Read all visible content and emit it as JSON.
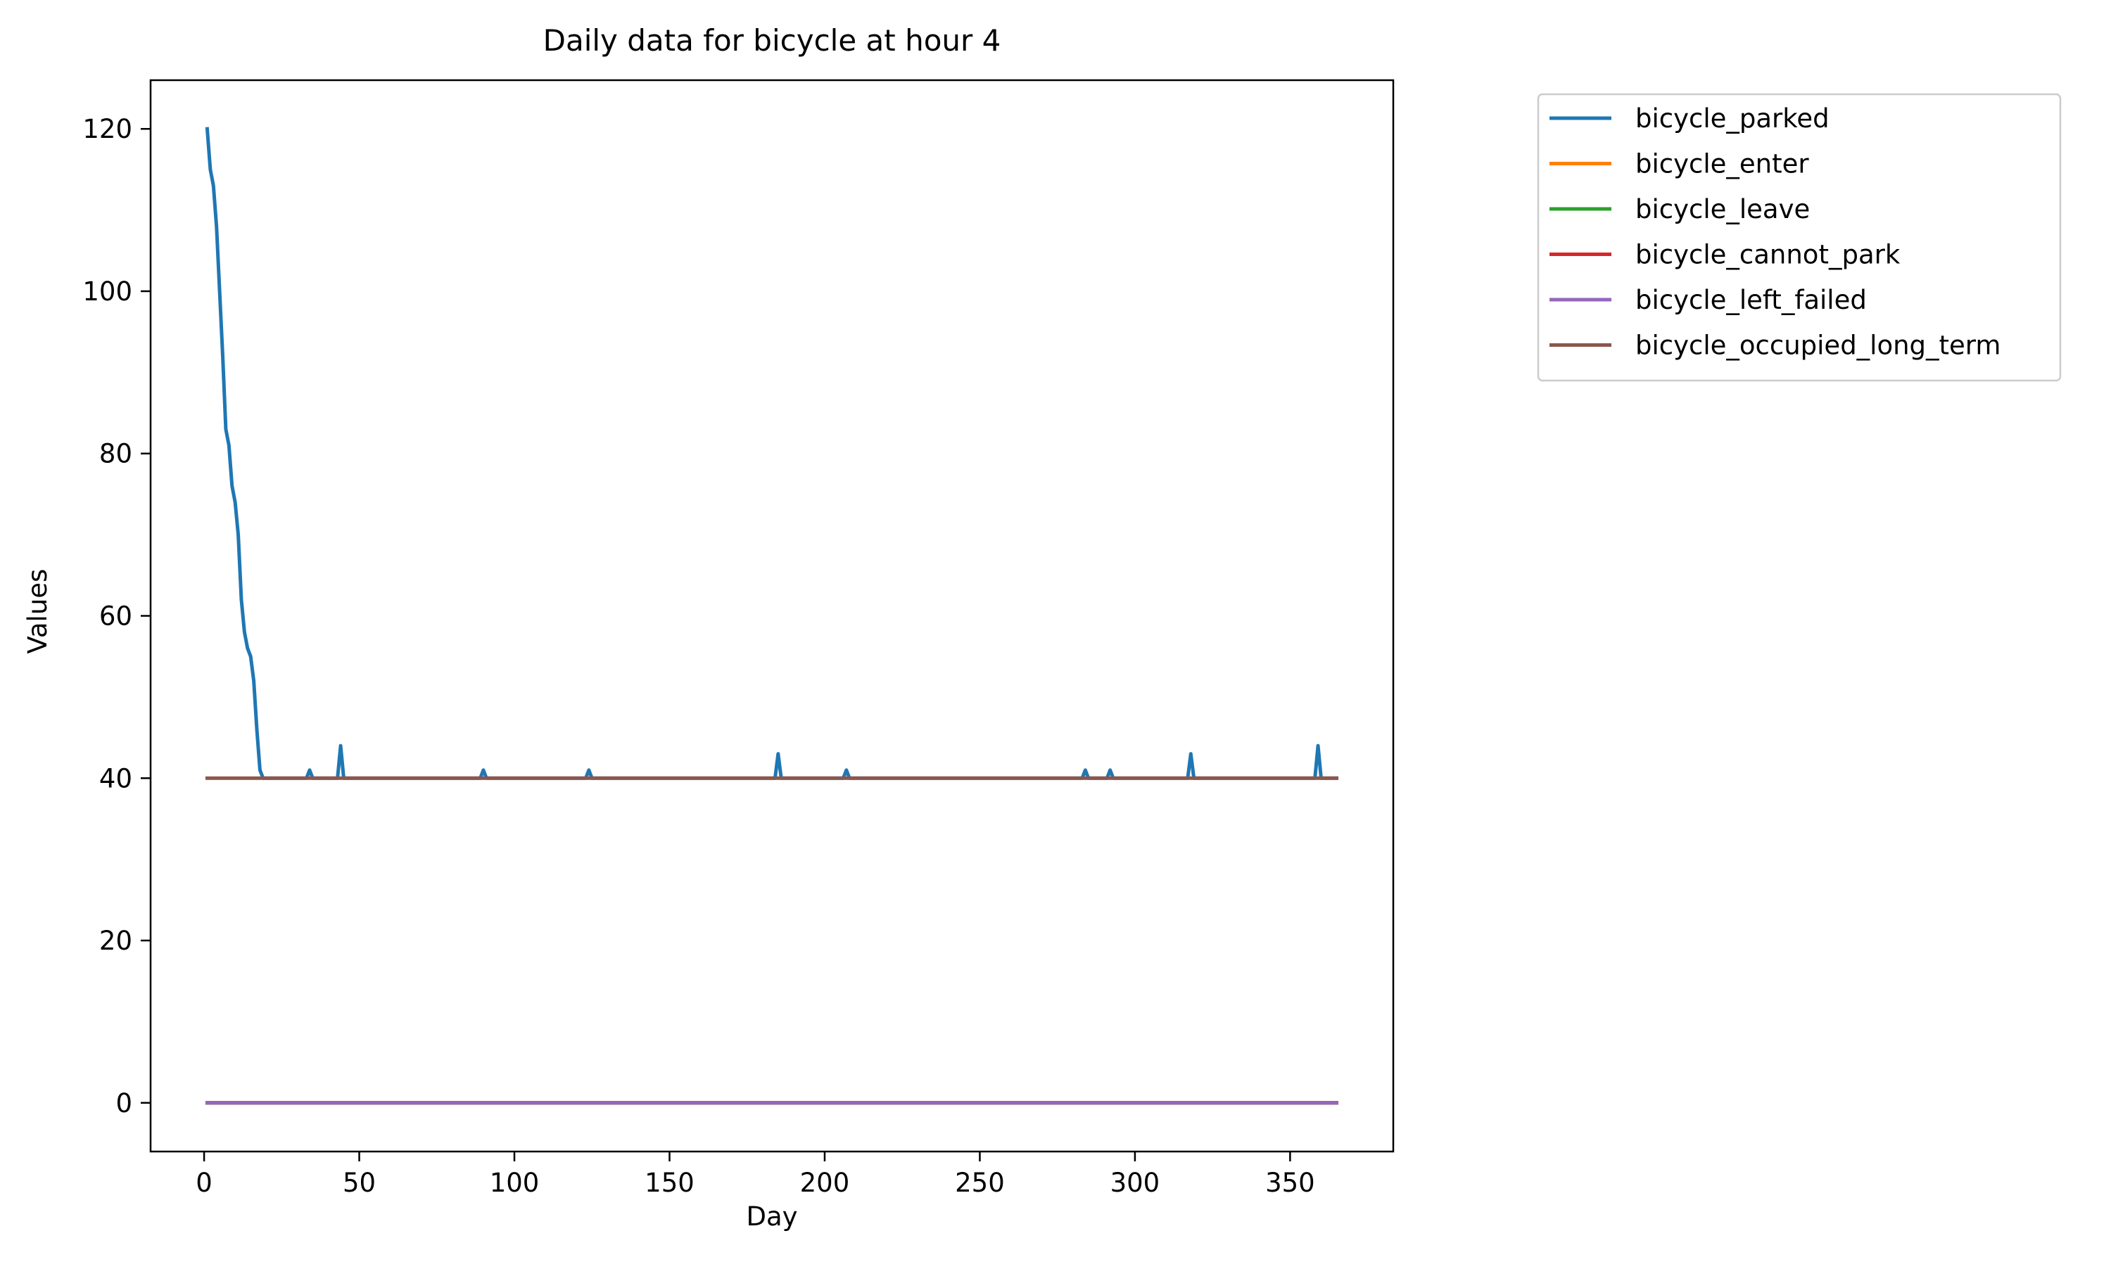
{
  "chart_data": {
    "type": "line",
    "title": "Daily data for bicycle at hour 4",
    "xlabel": "Day",
    "ylabel": "Values",
    "xlim": [
      -17.25,
      383.25
    ],
    "ylim": [
      -6,
      126
    ],
    "xticks": [
      0,
      50,
      100,
      150,
      200,
      250,
      300,
      350
    ],
    "yticks": [
      0,
      20,
      40,
      60,
      80,
      100,
      120
    ],
    "grid": false,
    "legend_position": "outside-upper-right",
    "series": [
      {
        "name": "bicycle_parked",
        "color": "#1f77b4",
        "points": [
          [
            1,
            120
          ],
          [
            2,
            115
          ],
          [
            3,
            113
          ],
          [
            4,
            108
          ],
          [
            5,
            100
          ],
          [
            6,
            92
          ],
          [
            7,
            83
          ],
          [
            8,
            81
          ],
          [
            9,
            76
          ],
          [
            10,
            74
          ],
          [
            11,
            70
          ],
          [
            12,
            62
          ],
          [
            13,
            58
          ],
          [
            14,
            56
          ],
          [
            15,
            55
          ],
          [
            16,
            52
          ],
          [
            17,
            46
          ],
          [
            18,
            41
          ],
          [
            19,
            40
          ],
          [
            33,
            40
          ],
          [
            34,
            41
          ],
          [
            35,
            40
          ],
          [
            43,
            40
          ],
          [
            44,
            44
          ],
          [
            45,
            40
          ],
          [
            89,
            40
          ],
          [
            90,
            41
          ],
          [
            91,
            40
          ],
          [
            123,
            40
          ],
          [
            124,
            41
          ],
          [
            125,
            40
          ],
          [
            184,
            40
          ],
          [
            185,
            43
          ],
          [
            186,
            40
          ],
          [
            206,
            40
          ],
          [
            207,
            41
          ],
          [
            208,
            40
          ],
          [
            283,
            40
          ],
          [
            284,
            41
          ],
          [
            285,
            40
          ],
          [
            291,
            40
          ],
          [
            292,
            41
          ],
          [
            293,
            40
          ],
          [
            317,
            40
          ],
          [
            318,
            43
          ],
          [
            319,
            40
          ],
          [
            358,
            40
          ],
          [
            359,
            44
          ],
          [
            360,
            40
          ],
          [
            365,
            40
          ]
        ]
      },
      {
        "name": "bicycle_enter",
        "color": "#ff7f0e",
        "points": [
          [
            1,
            0
          ],
          [
            365,
            0
          ]
        ]
      },
      {
        "name": "bicycle_leave",
        "color": "#2ca02c",
        "points": [
          [
            1,
            0
          ],
          [
            365,
            0
          ]
        ]
      },
      {
        "name": "bicycle_cannot_park",
        "color": "#d62728",
        "points": [
          [
            1,
            0
          ],
          [
            365,
            0
          ]
        ]
      },
      {
        "name": "bicycle_left_failed",
        "color": "#9467bd",
        "points": [
          [
            1,
            0
          ],
          [
            365,
            0
          ]
        ]
      },
      {
        "name": "bicycle_occupied_long_term",
        "color": "#8c564b",
        "points": [
          [
            1,
            40
          ],
          [
            365,
            40
          ]
        ]
      }
    ]
  }
}
